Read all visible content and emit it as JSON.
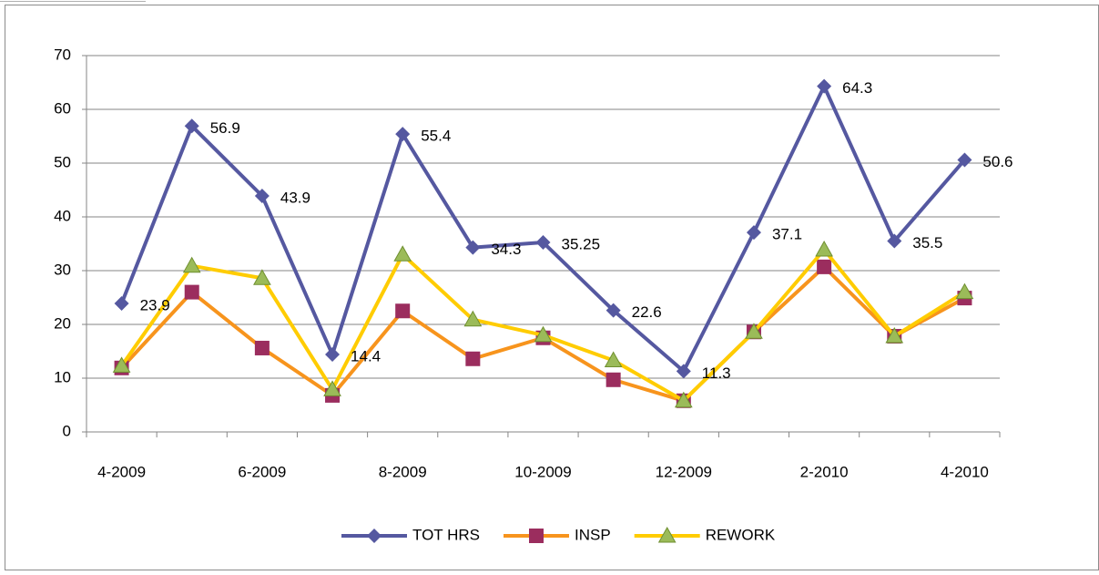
{
  "chart_data": {
    "type": "line",
    "categories": [
      "4-2009",
      null,
      "6-2009",
      null,
      "8-2009",
      null,
      "10-2009",
      null,
      "12-2009",
      null,
      "2-2010",
      null,
      "4-2010"
    ],
    "series": [
      {
        "name": "TOT HRS",
        "color": "#5558a0",
        "marker": "diamond",
        "marker_color": "#5558a0",
        "data_labels": true,
        "values": [
          23.9,
          56.9,
          43.9,
          14.4,
          55.4,
          34.3,
          35.25,
          22.6,
          11.3,
          37.1,
          64.3,
          35.5,
          50.6
        ]
      },
      {
        "name": "INSP",
        "color": "#f7941d",
        "marker": "square",
        "marker_color": "#9b2d5e",
        "data_labels": false,
        "values": [
          11.9,
          26,
          15.6,
          6.8,
          22.5,
          13.6,
          17.5,
          9.7,
          5.8,
          18.6,
          30.7,
          17.8,
          24.9
        ]
      },
      {
        "name": "REWORK",
        "color": "#ffcc00",
        "marker": "triangle",
        "marker_color": "#9bbb59",
        "data_labels": false,
        "values": [
          12.3,
          30.9,
          28.6,
          7.9,
          33,
          20.9,
          18,
          13.3,
          5.8,
          18.6,
          33.9,
          17.8,
          26
        ]
      }
    ],
    "ylim": [
      0,
      70
    ],
    "yticks": [
      0,
      10,
      20,
      30,
      40,
      50,
      60,
      70
    ],
    "grid": true,
    "legend": "bottom"
  }
}
